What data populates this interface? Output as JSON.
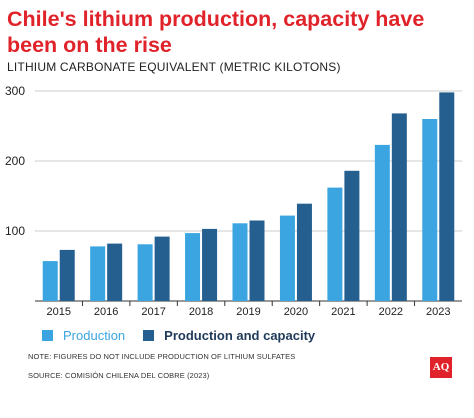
{
  "header": {
    "title": "Chile's lithium production, capacity have been on the rise",
    "subtitle": "LITHIUM CARBONATE EQUIVALENT (METRIC KILOTONS)"
  },
  "legend": {
    "production": "Production",
    "capacity": "Production and capacity"
  },
  "footer": {
    "note": "NOTE: FIGURES DO NOT INCLUDE PRODUCTION OF LITHIUM SULFATES",
    "source": "SOURCE: COMISIÓN CHILENA DEL COBRE (2023)",
    "logo": "AQ"
  },
  "colors": {
    "production": "#3aa5e0",
    "capacity": "#245f8f",
    "title": "#e0232a",
    "grid": "#cccccc"
  },
  "chart_data": {
    "type": "bar",
    "title": "Chile's lithium production, capacity have been on the rise",
    "subtitle": "LITHIUM CARBONATE EQUIVALENT (METRIC KILOTONS)",
    "xlabel": "",
    "ylabel": "",
    "categories": [
      "2015",
      "2016",
      "2017",
      "2018",
      "2019",
      "2020",
      "2021",
      "2022",
      "2023"
    ],
    "series": [
      {
        "name": "Production",
        "values": [
          57,
          78,
          81,
          97,
          111,
          122,
          162,
          223,
          260
        ]
      },
      {
        "name": "Production and capacity",
        "values": [
          73,
          82,
          92,
          103,
          115,
          139,
          186,
          268,
          298
        ]
      }
    ],
    "yticks": [
      100,
      200,
      300
    ],
    "ylim": [
      0,
      300
    ],
    "grid": true,
    "legend_position": "bottom-left"
  }
}
